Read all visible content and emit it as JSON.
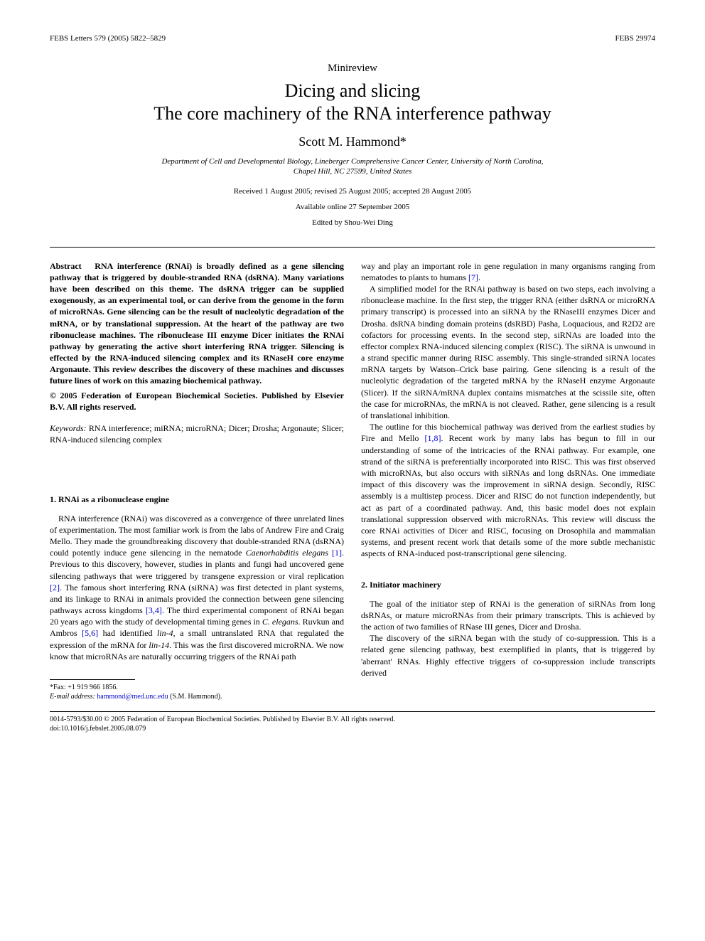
{
  "header": {
    "left": "FEBS Letters 579 (2005) 5822–5829",
    "right": "FEBS 29974"
  },
  "article_type": "Minireview",
  "title_line1": "Dicing and slicing",
  "title_line2": "The core machinery of the RNA interference pathway",
  "author": "Scott M. Hammond*",
  "affiliation_line1": "Department of Cell and Developmental Biology, Lineberger Comprehensive Cancer Center, University of North Carolina,",
  "affiliation_line2": "Chapel Hill, NC 27599, United States",
  "dates": "Received 1 August 2005; revised 25 August 2005; accepted 28 August 2005",
  "available": "Available online 27 September 2005",
  "editor": "Edited by Shou-Wei Ding",
  "abstract": {
    "label": "Abstract",
    "text": "RNA interference (RNAi) is broadly defined as a gene silencing pathway that is triggered by double-stranded RNA (dsRNA). Many variations have been described on this theme. The dsRNA trigger can be supplied exogenously, as an experimental tool, or can derive from the genome in the form of microRNAs. Gene silencing can be the result of nucleolytic degradation of the mRNA, or by translational suppression. At the heart of the pathway are two ribonuclease machines. The ribonuclease III enzyme Dicer initiates the RNAi pathway by generating the active short interfering RNA trigger. Silencing is effected by the RNA-induced silencing complex and its RNaseH core enzyme Argonaute. This review describes the discovery of these machines and discusses future lines of work on this amazing biochemical pathway."
  },
  "copyright": "© 2005 Federation of European Biochemical Societies. Published by Elsevier B.V. All rights reserved.",
  "keywords": {
    "label": "Keywords:",
    "text": "RNA interference; miRNA; microRNA; Dicer; Drosha; Argonaute; Slicer; RNA-induced silencing complex"
  },
  "section1": {
    "heading": "1. RNAi as a ribonuclease engine",
    "p1a": "RNA interference (RNAi) was discovered as a convergence of three unrelated lines of experimentation. The most familiar work is from the labs of Andrew Fire and Craig Mello. They made the groundbreaking discovery that double-stranded RNA (dsRNA) could potently induce gene silencing in the nematode ",
    "p1_italic1": "Caenorhabditis elegans",
    "p1b": " ",
    "p1_ref1": "[1]",
    "p1c": ". Previous to this discovery, however, studies in plants and fungi had uncovered gene silencing pathways that were triggered by transgene expression or viral replication ",
    "p1_ref2": "[2]",
    "p1d": ". The famous short interfering RNA (siRNA) was first detected in plant systems, and its linkage to RNAi in animals provided the connection between gene silencing pathways across kingdoms ",
    "p1_ref3": "[3,4]",
    "p1e": ". The third experimental component of RNAi began 20 years ago with the study of developmental timing genes in ",
    "p1_italic2": "C. elegans",
    "p1f": ". Ruvkun and Ambros ",
    "p1_ref4": "[5,6]",
    "p1g": " had identified ",
    "p1_italic3": "lin-4",
    "p1h": ", a small untranslated RNA that regulated the expression of the mRNA for ",
    "p1_italic4": "lin-14",
    "p1i": ". This was the first discovered microRNA. We now know that microRNAs are naturally occurring triggers of the RNAi path"
  },
  "col2": {
    "p1a": "way and play an important role in gene regulation in many organisms ranging from nematodes to plants to humans ",
    "p1_ref": "[7]",
    "p1b": ".",
    "p2": "A simplified model for the RNAi pathway is based on two steps, each involving a ribonuclease machine. In the first step, the trigger RNA (either dsRNA or microRNA primary transcript) is processed into an siRNA by the RNaseIII enzymes Dicer and Drosha. dsRNA binding domain proteins (dsRBD) Pasha, Loquacious, and R2D2 are cofactors for processing events. In the second step, siRNAs are loaded into the effector complex RNA-induced silencing complex (RISC). The siRNA is unwound in a strand specific manner during RISC assembly. This single-stranded siRNA locates mRNA targets by Watson–Crick base pairing. Gene silencing is a result of the nucleolytic degradation of the targeted mRNA by the RNaseH enzyme Argonaute (Slicer). If the siRNA/mRNA duplex contains mismatches at the scissile site, often the case for microRNAs, the mRNA is not cleaved. Rather, gene silencing is a result of translational inhibition.",
    "p3a": "The outline for this biochemical pathway was derived from the earliest studies by Fire and Mello ",
    "p3_ref": "[1,8]",
    "p3b": ". Recent work by many labs has begun to fill in our understanding of some of the intricacies of the RNAi pathway. For example, one strand of the siRNA is preferentially incorporated into RISC. This was first observed with microRNAs, but also occurs with siRNAs and long dsRNAs. One immediate impact of this discovery was the improvement in siRNA design. Secondly, RISC assembly is a multistep process. Dicer and RISC do not function independently, but act as part of a coordinated pathway. And, this basic model does not explain translational suppression observed with microRNAs. This review will discuss the core RNAi activities of Dicer and RISC, focusing on Drosophila and mammalian systems, and present recent work that details some of the more subtle mechanistic aspects of RNA-induced post-transcriptional gene silencing."
  },
  "section2": {
    "heading": "2. Initiator machinery",
    "p1": "The goal of the initiator step of RNAi is the generation of siRNAs from long dsRNAs, or mature microRNAs from their primary transcripts. This is achieved by the action of two families of RNase III genes, Dicer and Drosha.",
    "p2": "The discovery of the siRNA began with the study of co-suppression. This is a related gene silencing pathway, best exemplified in plants, that is triggered by 'aberrant' RNAs. Highly effective triggers of co-suppression include transcripts derived"
  },
  "footnote": {
    "fax": "*Fax: +1 919 966 1856.",
    "email_label": "E-mail address:",
    "email": "hammond@med.unc.edu",
    "email_paren": "(S.M. Hammond)."
  },
  "bottom": {
    "line1": "0014-5793/$30.00 © 2005 Federation of European Biochemical Societies. Published by Elsevier B.V. All rights reserved.",
    "line2": "doi:10.1016/j.febslet.2005.08.079"
  },
  "colors": {
    "text": "#000000",
    "link": "#0000cc",
    "background": "#ffffff"
  },
  "typography": {
    "body_font": "Times New Roman",
    "title_size_pt": 20,
    "author_size_pt": 14,
    "body_size_pt": 9,
    "heading_size_pt": 9
  }
}
